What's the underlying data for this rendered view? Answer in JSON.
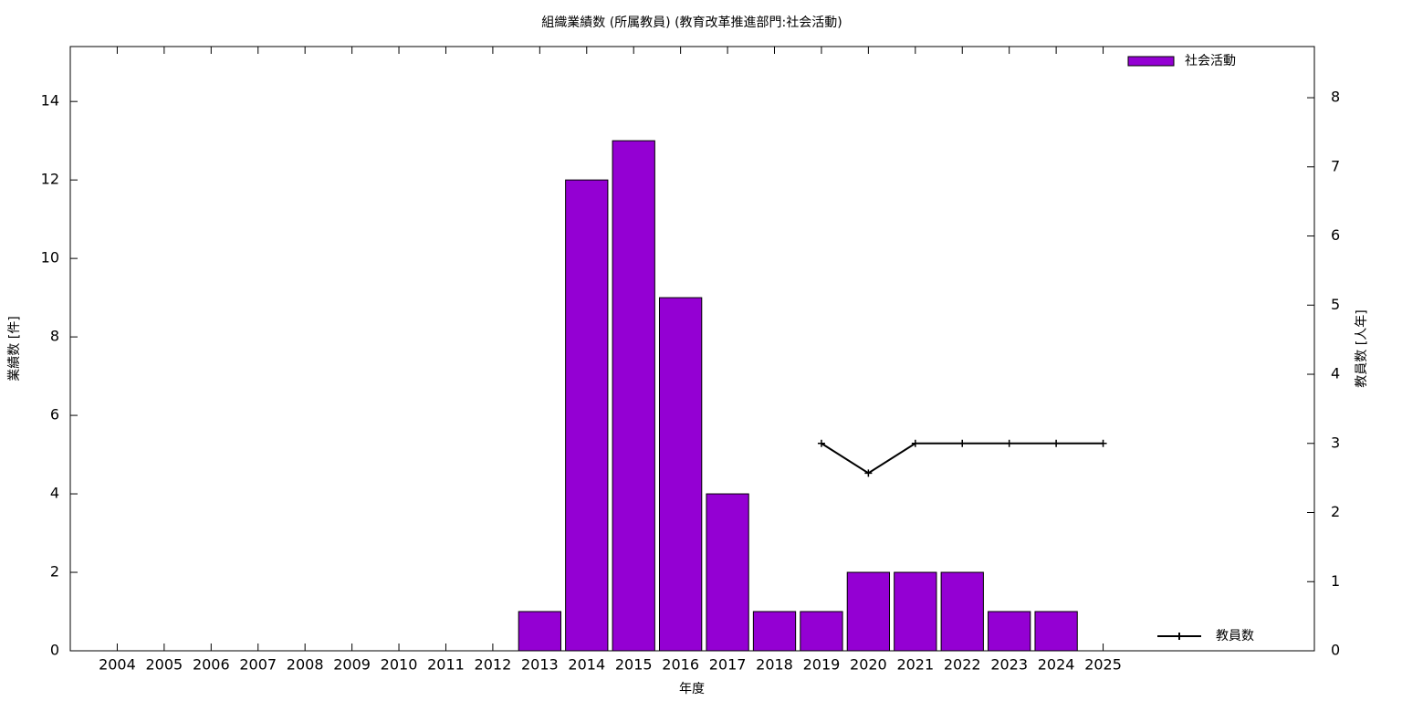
{
  "chart_data": {
    "type": "bar",
    "title": "組織業績数 (所属教員) (教育改革推進部門:社会活動)",
    "x_label": "年度",
    "y_label": "業績数 [件]",
    "y2_label": "教員数 [人年]",
    "x": [
      2004,
      2005,
      2006,
      2007,
      2008,
      2009,
      2010,
      2011,
      2012,
      2013,
      2014,
      2015,
      2016,
      2017,
      2018,
      2019,
      2020,
      2021,
      2022,
      2023,
      2024,
      2025
    ],
    "xlim": [
      2003,
      2029.5
    ],
    "ylim": [
      0,
      15.4
    ],
    "yticks": [
      0,
      2,
      4,
      6,
      8,
      10,
      12,
      14
    ],
    "y2lim": [
      0,
      8.74
    ],
    "y2ticks": [
      0,
      1,
      2,
      3,
      4,
      5,
      6,
      7,
      8
    ],
    "bar_width": 0.9,
    "legend": "top-right",
    "series": [
      {
        "name": "社会活動",
        "color": "#9400d3",
        "values": [
          0,
          0,
          0,
          0,
          0,
          0,
          0,
          0,
          0,
          1,
          12,
          13,
          9,
          4,
          1,
          1,
          2,
          2,
          2,
          1,
          1,
          null
        ]
      },
      {
        "name": "教員数",
        "color": "#000000",
        "type": "line",
        "axis": "y2",
        "values": [
          null,
          null,
          null,
          null,
          null,
          null,
          null,
          null,
          null,
          null,
          null,
          null,
          null,
          null,
          null,
          3,
          2.57,
          3,
          3,
          3,
          3,
          3
        ]
      }
    ]
  }
}
